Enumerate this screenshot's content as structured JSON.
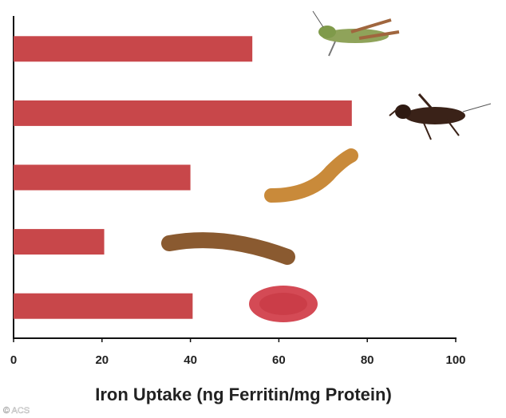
{
  "chart_data": {
    "type": "hbar",
    "x_label": "Iron Uptake (ng Ferritin/mg Protein)",
    "categories": [
      null,
      null,
      null,
      null,
      null
    ],
    "values": [
      54,
      76.5,
      40,
      20.5,
      40.5
    ],
    "color": "#c8474a",
    "xlim": [
      0,
      100
    ],
    "xticks": [
      0,
      20,
      40,
      60,
      80,
      100
    ],
    "annotations": [
      "© ACS"
    ]
  }
}
